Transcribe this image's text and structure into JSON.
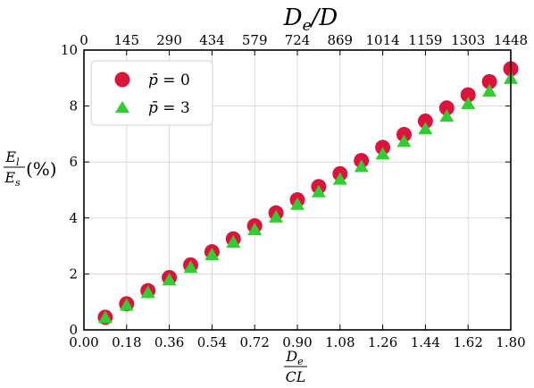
{
  "chart_data": {
    "type": "scatter",
    "x": [
      0.09,
      0.18,
      0.27,
      0.36,
      0.45,
      0.54,
      0.63,
      0.72,
      0.81,
      0.9,
      0.99,
      1.08,
      1.17,
      1.26,
      1.35,
      1.44,
      1.53,
      1.62,
      1.71,
      1.8
    ],
    "series": [
      {
        "name": "p̄ = 0",
        "color": "#dc143c",
        "marker": "circle",
        "values": [
          0.45,
          0.93,
          1.4,
          1.87,
          2.32,
          2.79,
          3.25,
          3.72,
          4.18,
          4.65,
          5.12,
          5.58,
          6.05,
          6.52,
          6.98,
          7.46,
          7.93,
          8.4,
          8.87,
          9.33
        ]
      },
      {
        "name": "p̄ = 3",
        "color": "#32cd32",
        "marker": "triangle",
        "values": [
          0.43,
          0.88,
          1.33,
          1.78,
          2.23,
          2.68,
          3.13,
          3.58,
          4.03,
          4.48,
          4.93,
          5.38,
          5.83,
          6.28,
          6.73,
          7.18,
          7.63,
          8.08,
          8.53,
          8.98
        ]
      }
    ],
    "xlim": [
      0.0,
      1.8
    ],
    "ylim": [
      0,
      10
    ],
    "xticks": [
      "0.00",
      "0.18",
      "0.36",
      "0.54",
      "0.72",
      "0.90",
      "1.08",
      "1.26",
      "1.44",
      "1.62",
      "1.80"
    ],
    "yticks": [
      "0",
      "2",
      "4",
      "6",
      "8",
      "10"
    ],
    "top_xticks": [
      "0",
      "145",
      "290",
      "434",
      "579",
      "724",
      "869",
      "1014",
      "1159",
      "1303",
      "1448"
    ],
    "xlabel": {
      "num_base": "D",
      "num_sub": "e",
      "den": "CL"
    },
    "ylabel": {
      "num_base": "E",
      "num_sub": "l",
      "den_base": "E",
      "den_sub": "s",
      "suffix": "(%)"
    },
    "top_xlabel": {
      "base": "D",
      "sub": "e",
      "rest": "/D"
    },
    "legend": {
      "placement": "top-left"
    },
    "legend_labels": [
      {
        "base": "p̄",
        "rest": " = 0"
      },
      {
        "base": "p̄",
        "rest": " = 3"
      }
    ],
    "grid": true
  }
}
